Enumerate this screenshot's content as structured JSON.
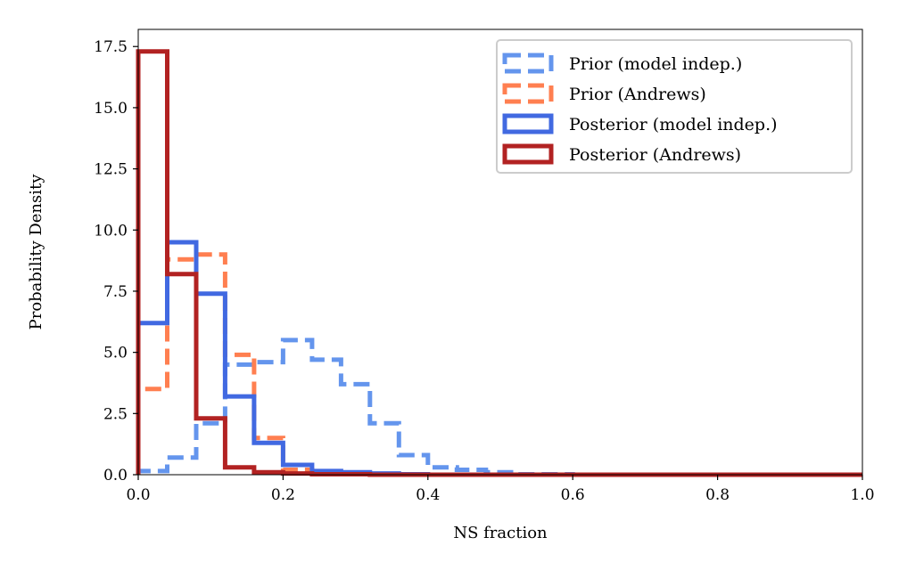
{
  "chart_data": {
    "type": "histogram",
    "xlabel": "NS fraction",
    "ylabel": "Probability Density",
    "xlim": [
      0.0,
      1.0
    ],
    "ylim": [
      0.0,
      18.2
    ],
    "xticks": [
      0.0,
      0.2,
      0.4,
      0.6,
      0.8,
      1.0
    ],
    "xtick_labels": [
      "0.0",
      "0.2",
      "0.4",
      "0.6",
      "0.8",
      "1.0"
    ],
    "yticks": [
      0.0,
      2.5,
      5.0,
      7.5,
      10.0,
      12.5,
      15.0,
      17.5
    ],
    "ytick_labels": [
      "0.0",
      "2.5",
      "5.0",
      "7.5",
      "10.0",
      "12.5",
      "15.0",
      "17.5"
    ],
    "legend_position": "top-right",
    "bin_edges": [
      0.0,
      0.04,
      0.08,
      0.12,
      0.16,
      0.2,
      0.24,
      0.28,
      0.32,
      0.36,
      0.4,
      0.44,
      0.48,
      0.52,
      0.56,
      0.6,
      0.64,
      0.68,
      0.72,
      0.76,
      0.8,
      0.84,
      0.88,
      0.92,
      0.96,
      1.0
    ],
    "series": [
      {
        "name": "Prior (model indep.)",
        "color": "#6495ED",
        "style": "dashed",
        "values": [
          0.15,
          0.7,
          2.1,
          4.5,
          4.6,
          5.5,
          4.7,
          3.7,
          2.1,
          0.8,
          0.3,
          0.2,
          0.1,
          0.02,
          0.02,
          0.0,
          0.0,
          0.0,
          0.0,
          0.0,
          0.0,
          0.0,
          0.0,
          0.0,
          0.0
        ]
      },
      {
        "name": "Prior (Andrews)",
        "color": "#FF7F50",
        "style": "dashed",
        "values": [
          3.5,
          8.8,
          9.0,
          4.9,
          1.5,
          0.2,
          0.1,
          0.05,
          0.02,
          0.02,
          0.0,
          0.0,
          0.0,
          0.0,
          0.0,
          0.0,
          0.0,
          0.0,
          0.0,
          0.0,
          0.0,
          0.0,
          0.0,
          0.0,
          0.0
        ]
      },
      {
        "name": "Posterior (model indep.)",
        "color": "#4169E1",
        "style": "solid",
        "values": [
          6.2,
          9.5,
          7.4,
          3.2,
          1.3,
          0.4,
          0.15,
          0.1,
          0.05,
          0.02,
          0.0,
          0.0,
          0.0,
          0.0,
          0.0,
          0.0,
          0.0,
          0.0,
          0.0,
          0.0,
          0.0,
          0.0,
          0.0,
          0.0,
          0.0
        ]
      },
      {
        "name": "Posterior (Andrews)",
        "color": "#B22222",
        "style": "solid",
        "values": [
          17.3,
          8.2,
          2.3,
          0.3,
          0.1,
          0.05,
          0.02,
          0.02,
          0.0,
          0.0,
          0.0,
          0.0,
          0.0,
          0.0,
          0.0,
          0.0,
          0.0,
          0.0,
          0.0,
          0.0,
          0.0,
          0.0,
          0.0,
          0.0,
          0.0
        ]
      }
    ]
  }
}
